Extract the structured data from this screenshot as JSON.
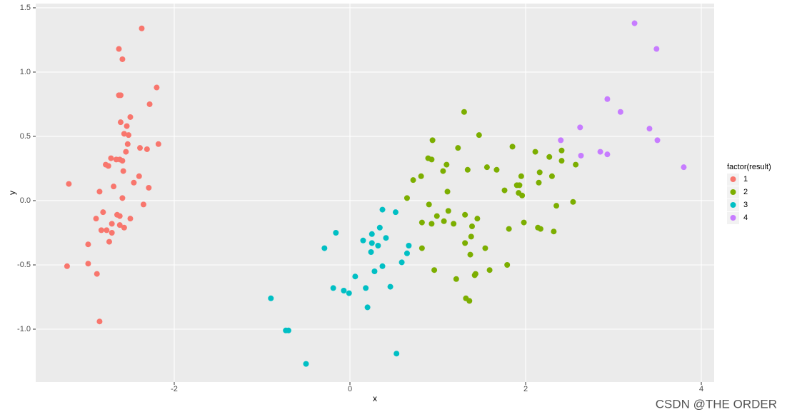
{
  "chart_data": {
    "type": "scatter",
    "x_label": "x",
    "y_label": "y",
    "legend_title": "factor(result)",
    "watermark": "CSDN @THE ORDER",
    "xlim": [
      -3.577,
      4.146
    ],
    "ylim": [
      -1.411,
      1.533
    ],
    "xticks": [
      -2,
      0,
      2,
      4
    ],
    "yticks": [
      {
        "value": -1.0,
        "label": "-1.0"
      },
      -0.5,
      {
        "value": 0.0,
        "label": "0.0"
      },
      0.5,
      {
        "value": 1.0,
        "label": "1.0"
      },
      1.5
    ],
    "grid": true,
    "legend": "right",
    "series": [
      {
        "name": "1",
        "color": "#F8766D",
        "x": [
          -2.37,
          -2.63,
          -2.59,
          -2.63,
          -2.61,
          -2.2,
          -2.28,
          -2.5,
          -2.61,
          -2.54,
          -2.57,
          -2.52,
          -2.53,
          -2.39,
          -2.18,
          -2.31,
          -2.55,
          -2.72,
          -2.66,
          -2.62,
          -2.59,
          -2.78,
          -2.75,
          -2.58,
          -2.4,
          -3.2,
          -2.46,
          -2.69,
          -2.29,
          -2.85,
          -2.59,
          -2.35,
          -2.81,
          -2.89,
          -2.65,
          -2.62,
          -2.71,
          -2.5,
          -2.62,
          -2.57,
          -2.83,
          -2.77,
          -2.71,
          -2.74,
          -2.98,
          -2.98,
          -3.22,
          -2.88,
          -2.85
        ],
        "values": [
          1.34,
          1.18,
          1.1,
          0.82,
          0.82,
          0.88,
          0.75,
          0.65,
          0.61,
          0.58,
          0.52,
          0.51,
          0.44,
          0.41,
          0.44,
          0.4,
          0.38,
          0.33,
          0.32,
          0.32,
          0.31,
          0.28,
          0.27,
          0.23,
          0.19,
          0.13,
          0.14,
          0.11,
          0.1,
          0.07,
          0.02,
          -0.03,
          -0.09,
          -0.14,
          -0.11,
          -0.12,
          -0.18,
          -0.14,
          -0.19,
          -0.21,
          -0.23,
          -0.23,
          -0.25,
          -0.32,
          -0.34,
          -0.49,
          -0.51,
          -0.57,
          -0.94
        ]
      },
      {
        "name": "2",
        "color": "#7CAE00",
        "x": [
          1.3,
          1.47,
          0.94,
          0.89,
          0.93,
          1.85,
          2.11,
          1.23,
          2.41,
          2.27,
          2.41,
          2.57,
          1.1,
          1.56,
          1.67,
          1.34,
          1.06,
          2.16,
          0.81,
          1.95,
          2.3,
          0.72,
          2.15,
          1.9,
          1.93,
          1.11,
          1.76,
          1.92,
          1.96,
          0.65,
          2.54,
          2.35,
          0.9,
          1.12,
          0.99,
          1.31,
          1.45,
          1.07,
          0.82,
          1.18,
          0.93,
          1.98,
          1.39,
          2.14,
          2.17,
          1.81,
          2.32,
          1.38,
          1.31,
          0.82,
          1.54,
          1.37,
          1.79,
          0.96,
          1.59,
          1.43,
          1.42,
          1.21,
          1.32,
          1.36
        ],
        "values": [
          0.69,
          0.51,
          0.47,
          0.33,
          0.32,
          0.42,
          0.38,
          0.41,
          0.39,
          0.34,
          0.31,
          0.28,
          0.28,
          0.26,
          0.24,
          0.24,
          0.23,
          0.22,
          0.19,
          0.19,
          0.19,
          0.16,
          0.14,
          0.12,
          0.12,
          0.07,
          0.08,
          0.06,
          0.04,
          0.02,
          -0.01,
          -0.04,
          -0.03,
          -0.08,
          -0.12,
          -0.11,
          -0.14,
          -0.16,
          -0.17,
          -0.18,
          -0.18,
          -0.17,
          -0.2,
          -0.21,
          -0.22,
          -0.22,
          -0.24,
          -0.28,
          -0.33,
          -0.37,
          -0.37,
          -0.42,
          -0.5,
          -0.54,
          -0.54,
          -0.57,
          -0.58,
          -0.61,
          -0.76,
          -0.78
        ]
      },
      {
        "name": "3",
        "color": "#00BFC4",
        "x": [
          0.37,
          0.52,
          0.34,
          -0.16,
          0.25,
          0.41,
          0.15,
          0.25,
          0.32,
          0.67,
          -0.29,
          0.24,
          0.65,
          0.59,
          0.37,
          0.28,
          0.06,
          0.46,
          -0.19,
          0.18,
          -0.07,
          -0.01,
          -0.9,
          0.2,
          -0.73,
          -0.7,
          0.53,
          -0.5
        ],
        "values": [
          -0.07,
          -0.09,
          -0.21,
          -0.25,
          -0.26,
          -0.29,
          -0.31,
          -0.33,
          -0.35,
          -0.35,
          -0.37,
          -0.4,
          -0.41,
          -0.48,
          -0.51,
          -0.55,
          -0.59,
          -0.67,
          -0.68,
          -0.68,
          -0.7,
          -0.72,
          -0.76,
          -0.83,
          -1.01,
          -1.01,
          -1.19,
          -1.27
        ]
      },
      {
        "name": "4",
        "color": "#C77CFF",
        "x": [
          3.24,
          3.49,
          2.93,
          3.08,
          2.62,
          3.41,
          2.4,
          3.5,
          2.85,
          2.93,
          2.63,
          3.8
        ],
        "values": [
          1.38,
          1.18,
          0.79,
          0.69,
          0.57,
          0.56,
          0.47,
          0.47,
          0.38,
          0.36,
          0.35,
          0.26
        ]
      }
    ]
  }
}
